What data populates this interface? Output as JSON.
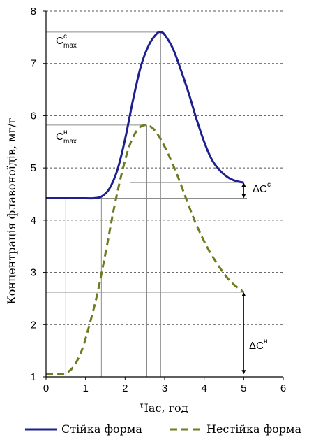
{
  "chart_data": {
    "type": "line",
    "xlabel": "Час, год",
    "ylabel": "Концентрація флавоноїдів, мг/г",
    "xlim": [
      0,
      6
    ],
    "ylim": [
      1,
      8
    ],
    "x_ticks": [
      "0",
      "1",
      "2",
      "3",
      "4",
      "5",
      "6"
    ],
    "y_ticks": [
      "1",
      "2",
      "3",
      "4",
      "5",
      "6",
      "7",
      "8"
    ],
    "grid": "horizontal dashed",
    "legend_position": "bottom",
    "series": [
      {
        "name": "Стійка форма",
        "color": "#1f1f8f",
        "style": "solid",
        "x": [
          0,
          0.5,
          1.0,
          1.2,
          1.4,
          1.6,
          1.8,
          2.0,
          2.2,
          2.4,
          2.6,
          2.8,
          2.9,
          3.0,
          3.2,
          3.4,
          3.6,
          3.8,
          4.0,
          4.2,
          4.4,
          4.6,
          4.8,
          5.0
        ],
        "values": [
          4.42,
          4.42,
          4.42,
          4.42,
          4.45,
          4.6,
          4.95,
          5.55,
          6.3,
          6.95,
          7.35,
          7.57,
          7.6,
          7.55,
          7.3,
          6.9,
          6.45,
          5.95,
          5.5,
          5.15,
          4.95,
          4.82,
          4.75,
          4.72
        ]
      },
      {
        "name": "Нестійка форма",
        "color": "#6b7d1e",
        "style": "dashed",
        "x": [
          0,
          0.3,
          0.5,
          0.7,
          0.9,
          1.1,
          1.3,
          1.5,
          1.7,
          1.9,
          2.1,
          2.3,
          2.5,
          2.7,
          2.9,
          3.1,
          3.3,
          3.5,
          3.7,
          3.9,
          4.1,
          4.3,
          4.5,
          4.7,
          5.0
        ],
        "values": [
          1.05,
          1.05,
          1.07,
          1.2,
          1.5,
          2.0,
          2.6,
          3.35,
          4.15,
          4.85,
          5.4,
          5.72,
          5.82,
          5.76,
          5.55,
          5.25,
          4.9,
          4.5,
          4.1,
          3.75,
          3.45,
          3.2,
          2.98,
          2.8,
          2.62
        ]
      }
    ],
    "reference_lines": {
      "c_max_stable": 7.6,
      "t_max_stable": 2.9,
      "c_max_unstable": 5.82,
      "t_max_unstable": 2.55,
      "baseline_stable": 4.42,
      "end_stable": 4.72,
      "end_unstable": 2.62,
      "baseline_unstable": 1.05,
      "v_line_unstable_start": 0.5,
      "v_line_stable_start": 1.4
    },
    "annotations": [
      {
        "id": "cmax_stable",
        "main": "C",
        "sup": "с",
        "sub": "max"
      },
      {
        "id": "cmax_unstable",
        "main": "C",
        "sup": "н",
        "sub": "max"
      },
      {
        "id": "delta_stable",
        "main": "ΔC",
        "sup": "с"
      },
      {
        "id": "delta_unstable",
        "main": "ΔC",
        "sup": "н"
      }
    ]
  }
}
